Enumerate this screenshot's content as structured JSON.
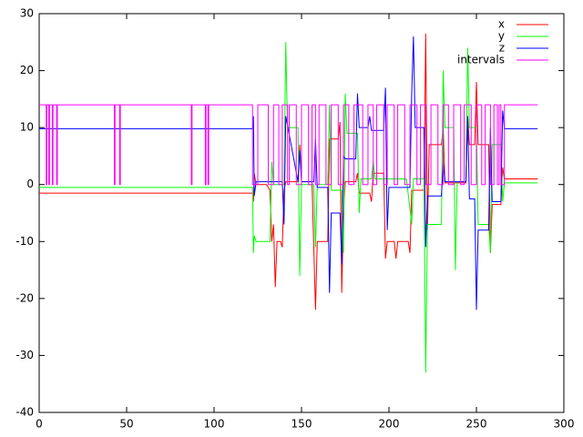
{
  "chart_data": {
    "type": "line",
    "xlim": [
      0,
      300
    ],
    "xticks": [
      0,
      50,
      100,
      150,
      200,
      250,
      300
    ],
    "ylim": [
      -40,
      30
    ],
    "yticks": [
      -40,
      -30,
      -20,
      -10,
      0,
      10,
      20,
      30
    ],
    "grid": false,
    "legend": "top-right",
    "series": [
      {
        "name": "x",
        "color": "#ff0000",
        "x": [
          0,
          122,
          122.5,
          123,
          124,
          130,
          132,
          133,
          134,
          135,
          136,
          138,
          139,
          140,
          141,
          148,
          149,
          150,
          156,
          157,
          158,
          159,
          160,
          165,
          166,
          167,
          171,
          172,
          173,
          174,
          175,
          181,
          182,
          183,
          189,
          190,
          191,
          197,
          198,
          199,
          203,
          204,
          205,
          211,
          212,
          213,
          220,
          221,
          222,
          223,
          230,
          231,
          232,
          244,
          245,
          246,
          249,
          250,
          251,
          257,
          258,
          259,
          264,
          265,
          266,
          285
        ],
        "values": [
          -1.5,
          -1.5,
          -3,
          2,
          0,
          0,
          -1,
          -10,
          -7,
          -18,
          -10,
          -10,
          -11,
          -1,
          0.5,
          0.5,
          7,
          0.5,
          0.5,
          -11,
          -22,
          -10,
          -10,
          -10,
          8,
          8,
          8,
          11,
          -19,
          -5,
          0.5,
          0.5,
          2,
          -1.5,
          -1.5,
          -3,
          2,
          2,
          -13,
          -10,
          -10,
          -13,
          -10,
          -10,
          -12,
          -1,
          -1,
          26.5,
          -8,
          7,
          7,
          10,
          0.3,
          0.3,
          12,
          7,
          7,
          18,
          7,
          7,
          -12,
          -3.5,
          -3.5,
          3,
          1,
          1
        ]
      },
      {
        "name": "y",
        "color": "#00ff00",
        "x": [
          0,
          122,
          122.5,
          123,
          124,
          132,
          133,
          134,
          140,
          141,
          142,
          148,
          149,
          150,
          157,
          158,
          159,
          165,
          166,
          167,
          173,
          174,
          175,
          176,
          182,
          183,
          184,
          190,
          191,
          192,
          210,
          213,
          214,
          220,
          221,
          222,
          230,
          231,
          232,
          237,
          238,
          239,
          244,
          245,
          246,
          250,
          251,
          257,
          258,
          259,
          264,
          265,
          266,
          285
        ],
        "values": [
          -0.5,
          -0.5,
          -12,
          -9,
          -10,
          -10,
          4,
          0,
          0,
          25,
          10,
          10,
          -16,
          0,
          0,
          -11,
          0,
          0,
          14,
          -1,
          -1,
          -12,
          16,
          9,
          9,
          -5,
          1,
          1,
          4,
          1,
          1,
          -7,
          1,
          1,
          -33,
          -7,
          -7,
          20,
          10,
          10,
          -15,
          0.5,
          0.5,
          24,
          10,
          10,
          -7,
          -7,
          -12,
          7,
          7,
          -3,
          0.3,
          0.3
        ]
      },
      {
        "name": "z",
        "color": "#0000ff",
        "x": [
          0,
          122,
          122.5,
          123,
          124,
          139,
          140,
          141,
          148,
          149,
          150,
          157,
          158,
          159,
          165,
          166,
          167,
          172,
          173,
          174,
          175,
          181,
          182,
          183,
          188,
          189,
          190,
          197,
          198,
          199,
          200,
          212,
          213,
          214,
          215,
          220,
          221,
          222,
          230,
          231,
          232,
          244,
          245,
          246,
          249,
          250,
          251,
          257,
          258,
          259,
          264,
          265,
          266,
          285
        ],
        "values": [
          9.8,
          9.8,
          12,
          -2,
          0.5,
          0.5,
          -7,
          12,
          0.5,
          6,
          0.5,
          0.5,
          8,
          -0.5,
          -0.5,
          -19,
          -5,
          -5,
          -14,
          5,
          4.5,
          4.5,
          16,
          10,
          10,
          12,
          9.5,
          9.5,
          17,
          -8,
          -0.5,
          -0.5,
          16,
          26,
          10,
          10,
          -11,
          -2,
          -2,
          4,
          0.5,
          0.5,
          12,
          -2.5,
          -2.5,
          -22,
          -8,
          -8,
          10,
          -3,
          -3,
          13,
          9.8,
          9.8
        ]
      },
      {
        "name": "intervals",
        "color": "#ff00ff",
        "x": [
          0,
          4,
          4,
          4.4,
          4.4,
          5.5,
          5.5,
          5.9,
          5.9,
          7.5,
          7.5,
          7.9,
          7.9,
          10,
          10,
          10.4,
          10.4,
          43,
          43,
          43.4,
          43.4,
          46,
          46,
          46.4,
          46.4,
          87,
          87,
          87.4,
          87.4,
          95,
          95,
          95.4,
          95.4,
          96.5,
          96.5,
          96.9,
          96.9,
          122,
          122,
          125,
          125,
          131,
          131,
          134,
          134,
          137,
          137,
          139,
          139,
          142,
          142,
          143,
          143,
          147,
          147,
          150,
          150,
          154,
          154,
          156,
          156,
          158,
          158,
          160,
          160,
          164,
          164,
          167,
          167,
          171,
          171,
          174,
          174,
          177,
          177,
          180,
          180,
          185,
          185,
          188,
          188,
          191,
          191,
          193,
          193,
          197,
          197,
          199,
          199,
          203,
          203,
          205,
          205,
          209,
          209,
          212,
          212,
          216,
          216,
          218,
          218,
          221,
          221,
          224,
          224,
          228,
          228,
          231,
          231,
          234,
          234,
          237,
          237,
          241,
          241,
          243,
          243,
          247,
          247,
          250,
          250,
          253,
          253,
          255,
          255,
          258,
          258,
          260,
          260,
          262,
          262,
          263,
          263,
          264,
          264,
          266,
          266,
          285
        ],
        "values": [
          14,
          14,
          0,
          0,
          14,
          14,
          0,
          0,
          14,
          14,
          0,
          0,
          14,
          14,
          0,
          0,
          14,
          14,
          0,
          0,
          14,
          14,
          0,
          0,
          14,
          14,
          0,
          0,
          14,
          14,
          0,
          0,
          14,
          14,
          0,
          0,
          14,
          14,
          0,
          0,
          14,
          14,
          0,
          0,
          14,
          14,
          0,
          0,
          14,
          14,
          0,
          0,
          14,
          14,
          0,
          0,
          14,
          14,
          0,
          0,
          14,
          14,
          0,
          0,
          14,
          14,
          0,
          0,
          14,
          14,
          0,
          0,
          14,
          14,
          0,
          0,
          14,
          14,
          0,
          0,
          14,
          14,
          0,
          0,
          14,
          14,
          0,
          0,
          14,
          14,
          0,
          0,
          14,
          14,
          0,
          0,
          14,
          14,
          0,
          0,
          14,
          14,
          0,
          0,
          14,
          14,
          0,
          0,
          14,
          14,
          0,
          0,
          14,
          14,
          0,
          0,
          14,
          14,
          0,
          0,
          14,
          14,
          0,
          0,
          14,
          14,
          0,
          0,
          14,
          14,
          0,
          0,
          14,
          14,
          0,
          0,
          14,
          14
        ]
      }
    ]
  }
}
